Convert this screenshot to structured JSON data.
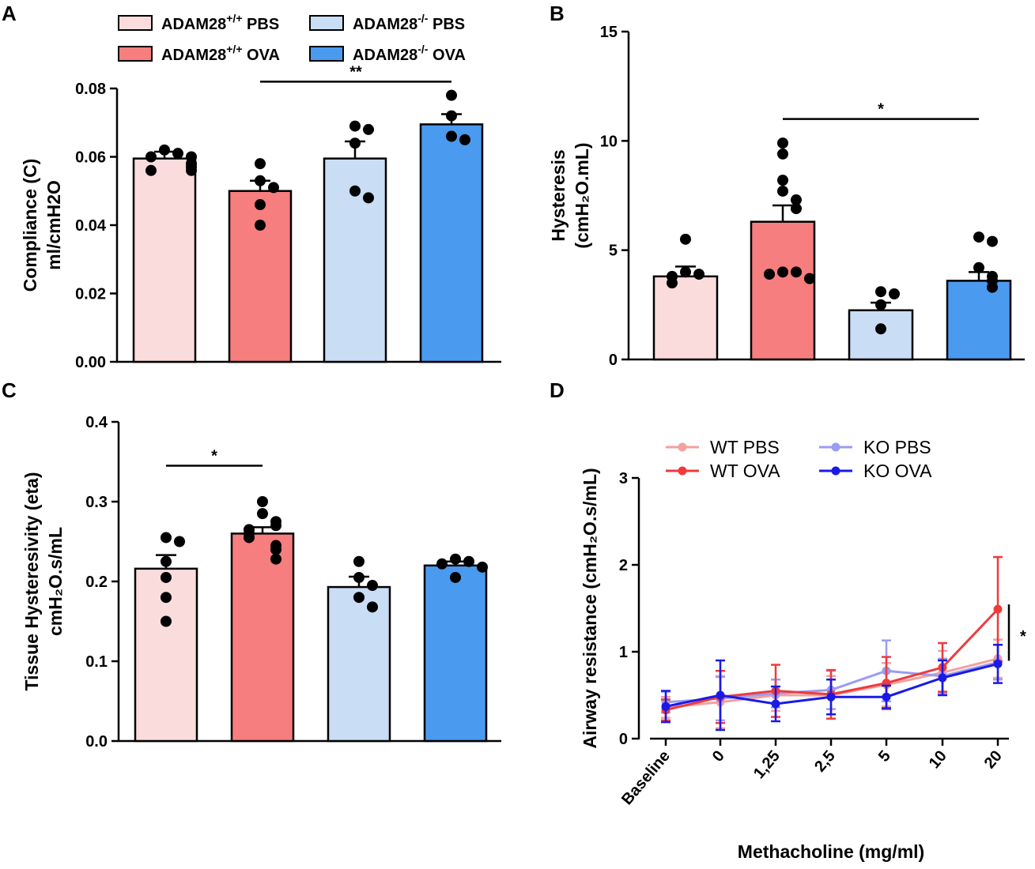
{
  "figure": {
    "groups": [
      "PBS",
      "OVA",
      "PBS",
      "OVA"
    ],
    "colors": {
      "wt_pbs": "#fbdcdd",
      "wt_ova": "#f67e7e",
      "ko_pbs": "#c9ddf5",
      "ko_ova": "#4a9af0",
      "line_wt_pbs": "#f2a0a0",
      "line_wt_ova": "#ee3b3b",
      "line_ko_pbs": "#9a9cf2",
      "line_ko_ova": "#1a1ae6",
      "ink": "#000000"
    }
  },
  "legend_top": {
    "items": [
      {
        "base": "ADAM28",
        "sup": "+/+",
        "tail": " PBS",
        "key": "wt_pbs"
      },
      {
        "base": "ADAM28",
        "sup": "-/-",
        "tail": " PBS",
        "key": "ko_pbs"
      },
      {
        "base": "ADAM28",
        "sup": "+/+",
        "tail": " OVA",
        "key": "wt_ova"
      },
      {
        "base": "ADAM28",
        "sup": "-/-",
        "tail": " OVA",
        "key": "ko_ova"
      }
    ]
  },
  "chart_data": [
    {
      "panel": "A",
      "type": "bar",
      "ylabel_line1": "Compliance (C)",
      "ylabel_line2": "ml/cmH2O",
      "ylim": [
        0,
        0.08
      ],
      "yticks": [
        "0.00",
        "0.02",
        "0.04",
        "0.06",
        "0.08"
      ],
      "categories": [
        "ADAM28+/+ PBS",
        "ADAM28+/+ OVA",
        "ADAM28-/- PBS",
        "ADAM28-/- OVA"
      ],
      "values": [
        0.0595,
        0.05,
        0.0595,
        0.0695
      ],
      "sem": [
        0.002,
        0.003,
        0.005,
        0.003
      ],
      "points": [
        [
          0.062,
          0.061,
          0.06,
          0.06,
          0.058,
          0.057,
          0.056,
          0.056
        ],
        [
          0.058,
          0.053,
          0.051,
          0.046,
          0.04
        ],
        [
          0.069,
          0.068,
          0.064,
          0.05,
          0.048
        ],
        [
          0.078,
          0.072,
          0.066,
          0.065
        ]
      ],
      "sig": {
        "from": 1,
        "to": 3,
        "label": "**",
        "y": 0.082
      }
    },
    {
      "panel": "B",
      "type": "bar",
      "ylabel_line1": "Hysteresis",
      "ylabel_line2": "(cmH₂O.mL)",
      "ylim": [
        0,
        15
      ],
      "yticks": [
        "0",
        "5",
        "10",
        "15"
      ],
      "categories": [
        "ADAM28+/+ PBS",
        "ADAM28+/+ OVA",
        "ADAM28-/- PBS",
        "ADAM28-/- OVA"
      ],
      "values": [
        3.8,
        6.3,
        2.25,
        3.6
      ],
      "sem": [
        0.45,
        0.75,
        0.35,
        0.4
      ],
      "points": [
        [
          5.5,
          4.0,
          3.9,
          3.8,
          3.5
        ],
        [
          9.9,
          9.4,
          8.2,
          7.7,
          7.3,
          6.9,
          4.0,
          4.0,
          3.9,
          3.7
        ],
        [
          3.1,
          3.0,
          2.5,
          1.4
        ],
        [
          5.6,
          5.4,
          4.2,
          3.8,
          3.6,
          3.3
        ]
      ],
      "sig": {
        "from": 1,
        "to": 3,
        "label": "*",
        "y": 11.0
      }
    },
    {
      "panel": "C",
      "type": "bar",
      "ylabel_line1": "Tissue Hysteresivity (eta)",
      "ylabel_line2": "cmH₂O.s/mL",
      "ylim": [
        0,
        0.4
      ],
      "yticks": [
        "0.0",
        "0.1",
        "0.2",
        "0.3",
        "0.4"
      ],
      "categories": [
        "ADAM28+/+ PBS",
        "ADAM28+/+ OVA",
        "ADAM28-/- PBS",
        "ADAM28-/- OVA"
      ],
      "values": [
        0.216,
        0.26,
        0.193,
        0.22
      ],
      "sem": [
        0.017,
        0.008,
        0.013,
        0.005
      ],
      "points": [
        [
          0.255,
          0.25,
          0.225,
          0.205,
          0.18,
          0.15
        ],
        [
          0.3,
          0.285,
          0.275,
          0.27,
          0.265,
          0.26,
          0.255,
          0.245,
          0.24,
          0.228
        ],
        [
          0.225,
          0.205,
          0.195,
          0.18,
          0.168
        ],
        [
          0.228,
          0.225,
          0.222,
          0.218,
          0.205
        ]
      ],
      "sig": {
        "from": 0,
        "to": 1,
        "label": "*",
        "y": 0.345
      }
    },
    {
      "panel": "D",
      "type": "line",
      "xlabel": "Methacholine (mg/ml)",
      "ylabel": "Airway resistance (cmH₂O.s/mL)",
      "ylim": [
        0,
        3
      ],
      "yticks": [
        "0",
        "1",
        "2",
        "3"
      ],
      "categories": [
        "Baseline",
        "0",
        "1,25",
        "2,5",
        "5",
        "10",
        "20"
      ],
      "series": [
        {
          "name": "WT PBS",
          "key": "line_wt_pbs",
          "values": [
            0.36,
            0.42,
            0.5,
            0.5,
            0.62,
            0.76,
            0.92
          ],
          "err": [
            0.12,
            0.3,
            0.18,
            0.22,
            0.25,
            0.25,
            0.22
          ]
        },
        {
          "name": "KO PBS",
          "key": "line_ko_pbs",
          "values": [
            0.42,
            0.46,
            0.52,
            0.56,
            0.78,
            0.72,
            0.88
          ],
          "err": [
            0.12,
            0.25,
            0.16,
            0.22,
            0.35,
            0.2,
            0.2
          ]
        },
        {
          "name": "WT OVA",
          "key": "line_wt_ova",
          "values": [
            0.33,
            0.48,
            0.55,
            0.51,
            0.64,
            0.82,
            1.49
          ],
          "err": [
            0.12,
            0.3,
            0.3,
            0.28,
            0.3,
            0.28,
            0.6
          ]
        },
        {
          "name": "KO OVA",
          "key": "line_ko_ova",
          "values": [
            0.37,
            0.5,
            0.4,
            0.48,
            0.48,
            0.7,
            0.86
          ],
          "err": [
            0.18,
            0.4,
            0.2,
            0.2,
            0.13,
            0.2,
            0.22
          ]
        }
      ],
      "legend_order": [
        "WT PBS",
        "KO PBS",
        "WT OVA",
        "KO OVA"
      ],
      "sig_label": "*"
    }
  ],
  "panel_labels": [
    "A",
    "B",
    "C",
    "D"
  ]
}
